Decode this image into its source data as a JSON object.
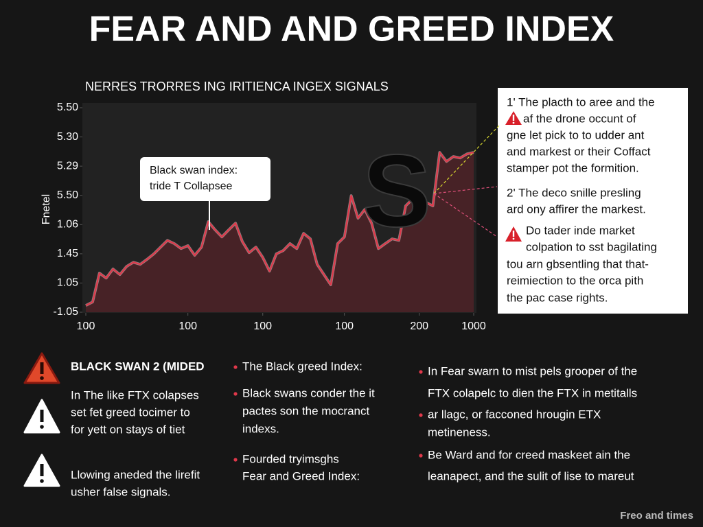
{
  "title": "FEAR AND AND GREED INDEX",
  "chart_data": {
    "type": "line",
    "title": "NERRES TRORRES ING IRITIENCA INGEX SIGNALS",
    "y_axis_label": "Fnetel",
    "color": "#e0384a",
    "area_color": "#4a2327",
    "values": [
      0.23,
      0.35,
      1.34,
      1.17,
      1.48,
      1.29,
      1.57,
      1.71,
      1.64,
      1.81,
      2.0,
      2.23,
      2.46,
      2.35,
      2.18,
      2.28,
      1.95,
      2.23,
      3.1,
      2.82,
      2.58,
      2.82,
      3.05,
      2.42,
      2.04,
      2.23,
      1.88,
      1.41,
      2.0,
      2.11,
      2.35,
      2.18,
      2.7,
      2.51,
      1.64,
      1.29,
      0.94,
      2.35,
      2.58,
      3.99,
      3.22,
      3.52,
      3.05,
      2.18,
      2.35,
      2.51,
      2.46,
      3.64,
      3.87,
      4.11,
      3.76,
      3.64,
      5.47,
      5.16,
      5.33,
      5.28,
      5.42,
      5.47
    ],
    "xlim": [
      0,
      57
    ],
    "xticks": [
      {
        "value": 0,
        "label": "100"
      },
      {
        "value": 15,
        "label": "100"
      },
      {
        "value": 26,
        "label": "100"
      },
      {
        "value": 38,
        "label": "100"
      },
      {
        "value": 49,
        "label": "200"
      },
      {
        "value": 57,
        "label": "1000"
      }
    ],
    "ylim": [
      0,
      7
    ],
    "yticks": [
      {
        "value": 7,
        "label": "5.50"
      },
      {
        "value": 6,
        "label": "5.30"
      },
      {
        "value": 5,
        "label": "5.29"
      },
      {
        "value": 4,
        "label": "5.50"
      },
      {
        "value": 3,
        "label": "1.06"
      },
      {
        "value": 2,
        "label": "1.45"
      },
      {
        "value": 1,
        "label": "1.05"
      },
      {
        "value": 0,
        "label": "-1.05"
      }
    ],
    "annotations": [
      {
        "text": [
          "Black swan index:",
          "tride T Collapsee"
        ]
      },
      {
        "text": [
          "S"
        ]
      }
    ]
  },
  "side_panel": {
    "lines": [
      "1' The placth to aree and the",
      "af the drone occunt of",
      "gne let pick to to udder ant",
      "and markest or their Coffact",
      "stamper pot the formition.",
      "2' The deco snille presling",
      "ard ony affirer the markest.",
      "Do tader inde market",
      "colpation to sst bagilating",
      "tou arn gbsentling that that-",
      "reimiection to the orca pith",
      "the pac case rights."
    ]
  },
  "columns": [
    {
      "heading": "BLACK SWAN 2 (MIDED",
      "items": [
        [
          "In The like FTX colapses",
          "set fet greed tocimer to",
          "for yett on stays of tiet"
        ],
        [
          "Llowing aneded the lirefit",
          "usher false signals."
        ]
      ]
    },
    {
      "items": [
        [
          "The Black greed Index:"
        ],
        [
          "Black swans conder the it",
          "pactes son the mocranct",
          "indexs."
        ],
        [
          "Fourded tryimsghs",
          "Fear and Greed Index:"
        ]
      ]
    },
    {
      "items": [
        [
          "In Fear swarn to mist pels grooper of the",
          "FTX colapelc to dien the  FTX in metitalls"
        ],
        [
          "ar llagc, or facconed hrougin ETX",
          "metineness."
        ],
        [
          "Be Ward and for creed maskeet ain the",
          "leanapect, and the sulit of lise to mareut"
        ]
      ]
    }
  ],
  "footer": "Freo and times"
}
